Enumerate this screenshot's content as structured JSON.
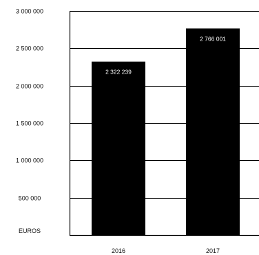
{
  "chart_data": {
    "type": "bar",
    "categories": [
      "2016",
      "2017"
    ],
    "values": [
      2322239,
      2766001
    ],
    "value_labels": [
      "2 322 239",
      "2 766 001"
    ],
    "yunit_label": "EUROS",
    "ylim": [
      0,
      3000000
    ],
    "yticks": [
      500000,
      1000000,
      1500000,
      2000000,
      2500000,
      3000000
    ],
    "ytick_labels": [
      "500 000",
      "1 000 000",
      "1 500 000",
      "2 000 000",
      "2 500 000",
      "3 000 000"
    ],
    "grid": true,
    "legend": "none",
    "colors": {
      "bar": "#000000",
      "grid": "#000000",
      "axis": "#000000",
      "data_label": "#ffffff"
    }
  }
}
